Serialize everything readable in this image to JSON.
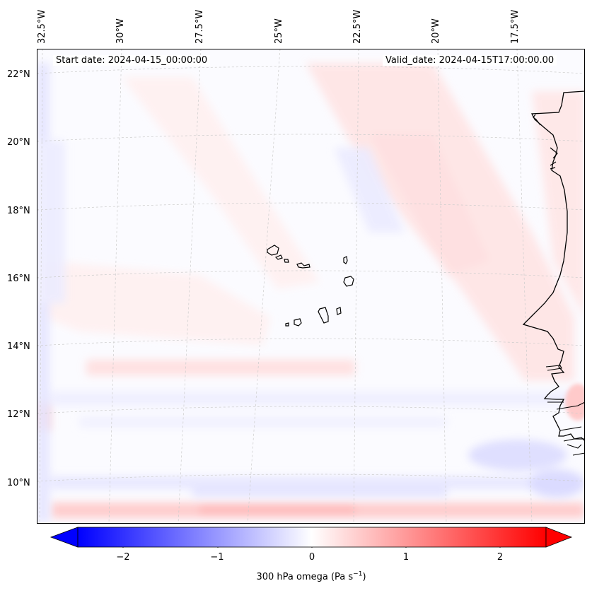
{
  "header": {
    "start_date": "Start date: 2024-04-15_00:00:00",
    "valid_date": "Valid_date: 2024-04-15T17:00:00.00"
  },
  "map": {
    "lon_labels": [
      "32.5°W",
      "30°W",
      "27.5°W",
      "25°W",
      "22.5°W",
      "20°W",
      "17.5°W"
    ],
    "lat_labels": [
      "22°N",
      "20°N",
      "18°N",
      "16°N",
      "14°N",
      "12°N",
      "10°N"
    ],
    "gridlines": true,
    "colors": {
      "coast": "#000000",
      "grid": "#cccccc"
    }
  },
  "colorbar": {
    "label_prefix": "300 hPa omega (Pa s",
    "label_exp": "−1",
    "label_suffix": ")",
    "ticks": [
      "−2",
      "−1",
      "0",
      "1",
      "2"
    ],
    "cmap": "bwr",
    "colors": {
      "min": "#0000ff",
      "mid": "#ffffff",
      "max": "#ff0000"
    },
    "range": [
      -2.7,
      2.7
    ],
    "extend": "both"
  }
}
